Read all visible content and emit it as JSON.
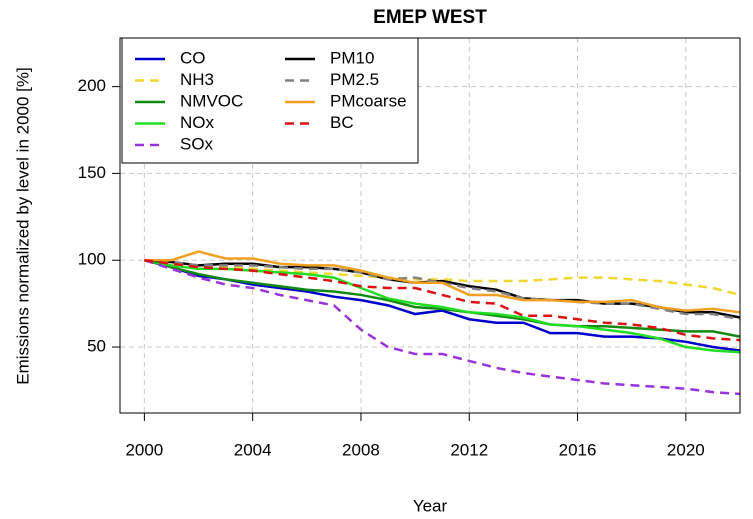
{
  "chart_data": {
    "type": "line",
    "title": "EMEP WEST",
    "x_label": "Year",
    "y_label": "Emissions normalized by level in 2000 [%]",
    "x": [
      2000,
      2001,
      2002,
      2003,
      2004,
      2005,
      2006,
      2007,
      2008,
      2009,
      2010,
      2011,
      2012,
      2013,
      2014,
      2015,
      2016,
      2017,
      2018,
      2019,
      2020,
      2021,
      2022
    ],
    "xlim": [
      1999.1,
      2022
    ],
    "ylim": [
      12,
      228
    ],
    "xticks": [
      2000,
      2004,
      2008,
      2012,
      2016,
      2020
    ],
    "yticks": [
      50,
      100,
      150,
      200
    ],
    "grid": true,
    "legend": "top-left",
    "series": [
      {
        "name": "CO",
        "color": "#0000cc",
        "dashed": false,
        "values": [
          100,
          96,
          91,
          89,
          86,
          84,
          82,
          79,
          77,
          74,
          69,
          71,
          66,
          64,
          64,
          58,
          58,
          56,
          56,
          55,
          53,
          50,
          48
        ]
      },
      {
        "name": "NH3",
        "color": "#f0d830",
        "dashed": true,
        "values": [
          100,
          98,
          97,
          96,
          95,
          94,
          93,
          92,
          91,
          90,
          89,
          89,
          88,
          88,
          88,
          89,
          90,
          90,
          89,
          88,
          86,
          84,
          80
        ]
      },
      {
        "name": "NMVOC",
        "color": "#128a12",
        "dashed": false,
        "values": [
          100,
          96,
          92,
          89,
          87,
          85,
          83,
          82,
          80,
          77,
          73,
          72,
          70,
          68,
          66,
          63,
          62,
          62,
          61,
          60,
          59,
          59,
          56
        ]
      },
      {
        "name": "NOx",
        "color": "#22dd22",
        "dashed": false,
        "values": [
          100,
          97,
          95,
          95,
          94,
          93,
          92,
          90,
          84,
          78,
          75,
          73,
          70,
          69,
          67,
          63,
          62,
          60,
          58,
          55,
          50,
          48,
          47
        ]
      },
      {
        "name": "SOx",
        "color": "#9933dd",
        "dashed": true,
        "values": [
          100,
          95,
          90,
          86,
          84,
          80,
          77,
          74,
          60,
          50,
          46,
          46,
          42,
          38,
          35,
          33,
          31,
          29,
          28,
          27,
          26,
          24,
          23
        ]
      },
      {
        "name": "PM10",
        "color": "#000000",
        "dashed": false,
        "values": [
          100,
          99,
          97,
          98,
          98,
          96,
          96,
          95,
          93,
          89,
          87,
          88,
          85,
          83,
          78,
          77,
          77,
          75,
          75,
          73,
          70,
          70,
          67
        ]
      },
      {
        "name": "PM2.5",
        "color": "#808080",
        "dashed": true,
        "values": [
          100,
          99,
          97,
          97,
          97,
          96,
          95,
          95,
          93,
          89,
          90,
          87,
          84,
          82,
          78,
          77,
          76,
          75,
          75,
          72,
          69,
          69,
          66
        ]
      },
      {
        "name": "PMcoarse",
        "color": "#f0a020",
        "dashed": false,
        "values": [
          100,
          100,
          105,
          101,
          101,
          98,
          97,
          97,
          94,
          90,
          87,
          87,
          80,
          80,
          77,
          77,
          76,
          76,
          77,
          73,
          71,
          72,
          70
        ]
      },
      {
        "name": "BC",
        "color": "#dd1111",
        "dashed": true,
        "values": [
          100,
          98,
          96,
          95,
          94,
          92,
          90,
          88,
          85,
          84,
          84,
          80,
          76,
          75,
          68,
          68,
          66,
          64,
          63,
          61,
          57,
          55,
          54
        ]
      }
    ]
  }
}
